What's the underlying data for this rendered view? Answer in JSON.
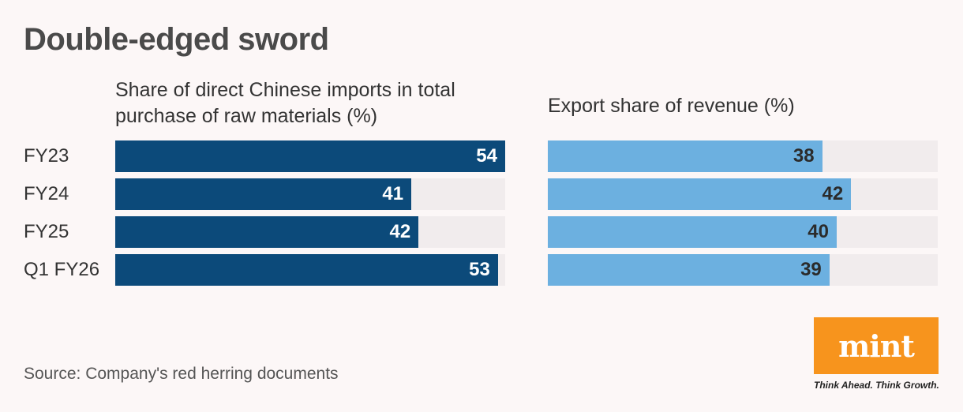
{
  "title": "Double-edged sword",
  "source": "Source: Company's red herring documents",
  "logo": {
    "text": "mint",
    "tagline": "Think Ahead. Think Growth.",
    "color": "#f7941d"
  },
  "chart_data": [
    {
      "type": "bar",
      "orientation": "horizontal",
      "title": "Share of direct Chinese imports in total purchase of raw materials (%)",
      "categories": [
        "FY23",
        "FY24",
        "FY25",
        "Q1 FY26"
      ],
      "values": [
        54,
        41,
        42,
        53
      ],
      "xlim": [
        0,
        54
      ],
      "color": "#0c4a7a"
    },
    {
      "type": "bar",
      "orientation": "horizontal",
      "title": "Export share of revenue (%)",
      "categories": [
        "FY23",
        "FY24",
        "FY25",
        "Q1 FY26"
      ],
      "values": [
        38,
        42,
        40,
        39
      ],
      "xlim": [
        0,
        54
      ],
      "color": "#6cb0e0"
    }
  ]
}
